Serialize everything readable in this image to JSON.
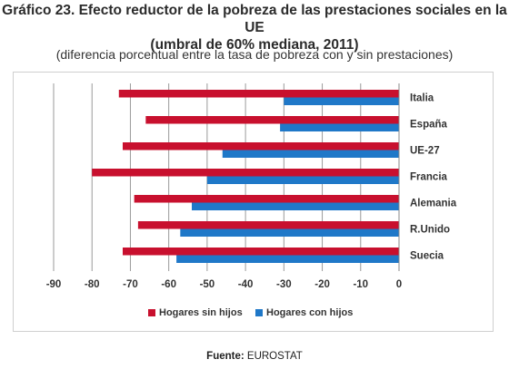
{
  "header": {
    "title_line1": "Gráfico 23. Efecto reductor de la pobreza de las prestaciones sociales en la UE",
    "title_line2": "(umbral de 60% mediana, 2011)",
    "subtitle": "(diferencia porcentual entre la tasa de pobreza con y sin prestaciones)"
  },
  "footer": {
    "source_label": "Fuente:",
    "source_value": "EUROSTAT"
  },
  "chart_data": {
    "type": "bar",
    "orientation": "horizontal",
    "categories": [
      "Italia",
      "España",
      "UE-27",
      "Francia",
      "Alemania",
      "R.Unido",
      "Suecia"
    ],
    "series": [
      {
        "name": "Hogares sin hijos",
        "color": "#c8102e",
        "values": [
          -73,
          -66,
          -72,
          -80,
          -69,
          -68,
          -72
        ]
      },
      {
        "name": "Hogares con hijos",
        "color": "#1f78c8",
        "values": [
          -30,
          -31,
          -46,
          -50,
          -54,
          -57,
          -58
        ]
      }
    ],
    "xlim": [
      -90,
      0
    ],
    "xticks": [
      -90,
      -80,
      -70,
      -60,
      -50,
      -40,
      -30,
      -20,
      -10,
      0
    ],
    "grid": "vertical",
    "legend_position": "bottom-center"
  }
}
